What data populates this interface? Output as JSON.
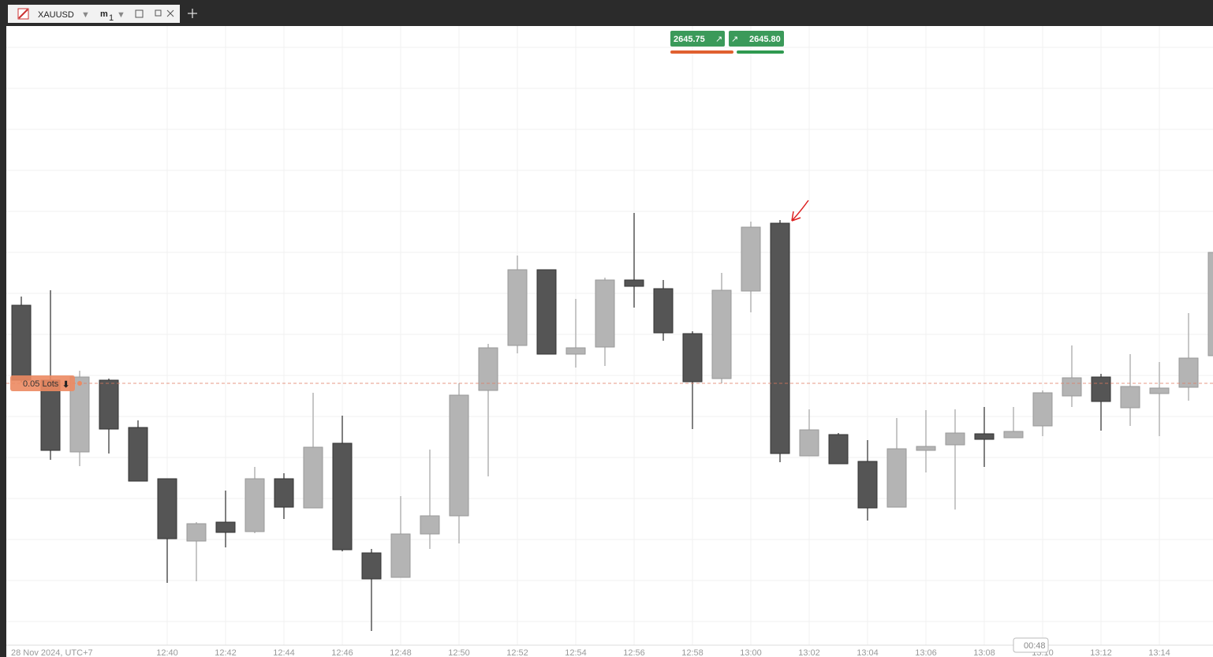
{
  "tab": {
    "symbol": "XAUUSD",
    "timeframe_unit": "m",
    "timeframe_value": "1"
  },
  "quotes": {
    "bid": "2645.75",
    "ask": "2645.80"
  },
  "chart_data": {
    "type": "candlestick",
    "date_label": "28 Nov 2024, UTC+7",
    "categories": [
      null,
      null,
      null,
      null,
      null,
      "12:40",
      null,
      "12:42",
      null,
      "12:44",
      null,
      "12:46",
      null,
      "12:48",
      null,
      "12:50",
      null,
      "12:52",
      null,
      "12:54",
      null,
      "12:56",
      null,
      "12:58",
      null,
      "13:00",
      null,
      "13:02",
      null,
      "13:04",
      null,
      "13:06",
      null,
      "13:08",
      null,
      "13:10",
      null,
      "13:12",
      null,
      "13:14",
      null,
      null
    ],
    "open": [
      2645.08,
      2644.13,
      2643.22,
      2644.13,
      2643.53,
      2642.88,
      2642.09,
      2642.33,
      2642.21,
      2642.88,
      2642.51,
      2643.33,
      2641.94,
      2641.63,
      2642.18,
      2642.41,
      2644.0,
      2644.57,
      2645.53,
      2644.46,
      2644.55,
      2645.4,
      2645.29,
      2644.72,
      2644.15,
      2645.26,
      2646.12,
      2643.17,
      2643.44,
      2643.1,
      2642.52,
      2643.24,
      2643.31,
      2643.45,
      2643.4,
      2643.55,
      2643.93,
      2644.17,
      2643.78,
      2643.96,
      2644.04,
      2644.44
    ],
    "high": [
      2645.19,
      2645.27,
      2644.25,
      2644.15,
      2643.62,
      2642.88,
      2642.33,
      2642.73,
      2643.03,
      2642.95,
      2643.97,
      2643.68,
      2641.99,
      2642.66,
      2643.25,
      2644.09,
      2644.59,
      2645.71,
      2645.53,
      2645.16,
      2645.43,
      2646.25,
      2645.4,
      2644.75,
      2645.49,
      2646.14,
      2646.16,
      2643.76,
      2643.46,
      2643.37,
      2643.65,
      2643.75,
      2643.76,
      2643.79,
      2643.79,
      2644.0,
      2644.57,
      2644.21,
      2644.46,
      2644.36,
      2644.98,
      2645.77
    ],
    "low": [
      2644.1,
      2643.12,
      2643.04,
      2643.2,
      2642.85,
      2641.56,
      2641.58,
      2642.01,
      2642.19,
      2642.37,
      2642.51,
      2641.96,
      2640.95,
      2641.63,
      2641.99,
      2642.06,
      2642.91,
      2644.47,
      2644.46,
      2644.29,
      2644.31,
      2645.05,
      2644.63,
      2643.51,
      2644.09,
      2644.99,
      2643.09,
      2643.17,
      2643.07,
      2642.35,
      2642.52,
      2642.96,
      2642.49,
      2643.03,
      2643.4,
      2643.42,
      2643.79,
      2643.49,
      2643.55,
      2643.42,
      2643.87,
      2644.44
    ],
    "close": [
      2644.13,
      2643.24,
      2644.17,
      2643.51,
      2642.85,
      2642.12,
      2642.31,
      2642.2,
      2642.88,
      2642.52,
      2643.28,
      2641.98,
      2641.61,
      2642.18,
      2642.41,
      2643.94,
      2644.54,
      2645.53,
      2644.46,
      2644.54,
      2645.4,
      2645.32,
      2644.73,
      2644.11,
      2645.27,
      2646.07,
      2643.2,
      2643.5,
      2643.07,
      2642.51,
      2643.26,
      2643.29,
      2643.46,
      2643.38,
      2643.48,
      2643.97,
      2644.16,
      2643.86,
      2644.05,
      2644.03,
      2644.41,
      2645.75
    ],
    "ylim": [
      2640.77,
      2648.6
    ],
    "up_color": "#b4b4b4",
    "down_color": "#555555",
    "order_line": {
      "label": "0.05 Lots",
      "value": 2644.09
    },
    "countdown": "00:48"
  }
}
